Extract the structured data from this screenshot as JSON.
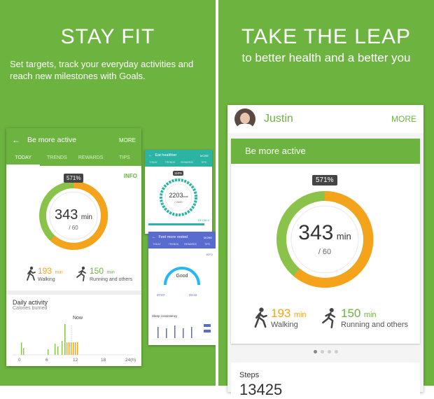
{
  "left": {
    "headline": "STAY FIT",
    "description": "Set targets, track your everyday activities and reach new milestones with Goals.",
    "phone": {
      "title": "Be more active",
      "more": "MORE",
      "tabs": [
        "TODAY",
        "TRENDS",
        "REWARDS",
        "TIPS"
      ],
      "info": "INFO",
      "badge": "571%",
      "value": "343",
      "unit": "min",
      "target": "/ 60",
      "walking_val": "193",
      "walking_unit": "min",
      "walking_label": "Walking",
      "running_val": "150",
      "running_unit": "min",
      "running_label": "Running and others",
      "daily_title": "Daily activity",
      "daily_sub": "Calories burned",
      "now_label": "Now",
      "axis": [
        "0",
        "6",
        "12",
        "18",
        "24(h)"
      ]
    },
    "mini1": {
      "title": "Eat healthier",
      "more": "MORE",
      "tabs": [
        "TODAY",
        "TRENDS",
        "REWARDS",
        "TIPS"
      ],
      "badge": "110%",
      "value": "2203",
      "unit": "kcal",
      "target": "/ 2000",
      "details": "DETAILS"
    },
    "mini2": {
      "title": "Feel more rested",
      "more": "MORE",
      "tabs": [
        "TODAY",
        "TRENDS",
        "REWARDS",
        "TIPS"
      ],
      "info": "INFO",
      "status": "Good",
      "wake_time": "07:07",
      "bed_time": "00:42",
      "section": "Sleep consistency"
    }
  },
  "right": {
    "headline": "TAKE THE LEAP",
    "subhead": "to better health and a better you",
    "user": "Justin",
    "more": "MORE",
    "card_title": "Be more active",
    "badge": "571%",
    "value": "343",
    "unit": "min",
    "target": "/ 60",
    "walking_val": "193",
    "walking_unit": "min",
    "walking_label": "Walking",
    "running_val": "150",
    "running_unit": "min",
    "running_label": "Running and others",
    "steps_label": "Steps",
    "steps_value": "13425"
  },
  "colors": {
    "brand_green": "#6cb33f",
    "orange": "#f5a31a",
    "teal": "#2bb3a3",
    "purple": "#5a6bcf"
  },
  "pager": {
    "count": 4,
    "active": 0
  }
}
